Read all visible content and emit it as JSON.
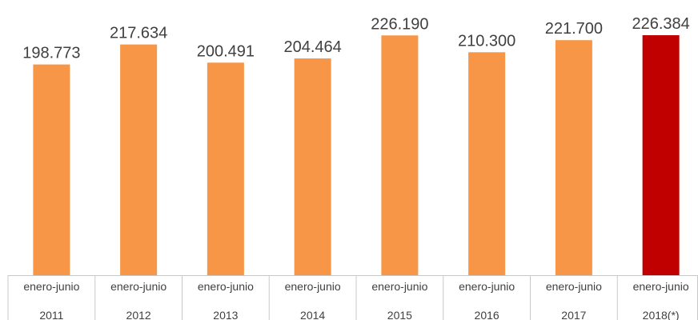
{
  "chart_data": {
    "type": "bar",
    "categories": [
      [
        "enero-junio",
        "2011"
      ],
      [
        "enero-junio",
        "2012"
      ],
      [
        "enero-junio",
        "2013"
      ],
      [
        "enero-junio",
        "2014"
      ],
      [
        "enero-junio",
        "2015"
      ],
      [
        "enero-junio",
        "2016"
      ],
      [
        "enero-junio",
        "2017"
      ],
      [
        "enero-junio",
        "2018(*)"
      ]
    ],
    "values": [
      198773,
      217634,
      200491,
      204464,
      226190,
      210300,
      221700,
      226384
    ],
    "value_labels": [
      "198.773",
      "217.634",
      "200.491",
      "204.464",
      "226.190",
      "210.300",
      "221.700",
      "226.384"
    ],
    "colors": [
      "#F79646",
      "#F79646",
      "#F79646",
      "#F79646",
      "#F79646",
      "#F79646",
      "#F79646",
      "#C00000"
    ],
    "ylim": [
      0,
      226384
    ],
    "grid": false,
    "legend": "none"
  }
}
